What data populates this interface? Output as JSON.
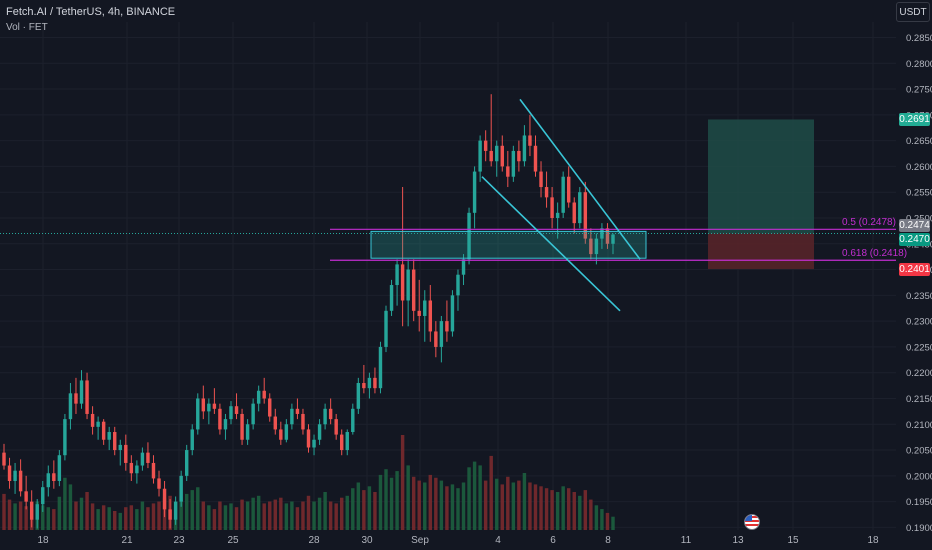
{
  "header": {
    "title": "Fetch.AI / TetherUS, 4h, BINANCE",
    "indicator": "Vol · FET",
    "currency": "USDT"
  },
  "colors": {
    "background": "#131722",
    "up": "#26a69a",
    "down": "#ef5350",
    "volume_up": "#1d5f3f",
    "volume_down": "#7a2a2e",
    "trendline": "#39c5d6",
    "fib": "#c22ed0",
    "zone": "#26a69a",
    "target_zone": "#1e4c46",
    "stop_zone": "#5a2429",
    "axis_text": "#b2b5be"
  },
  "fib_levels": [
    {
      "label": "0.5 (0.2478)",
      "value": 0.2478
    },
    {
      "label": "0.618 (0.2418)",
      "value": 0.2418
    }
  ],
  "price_tags": [
    {
      "label": "0.2691",
      "value": 0.2691,
      "color": "#22ab94"
    },
    {
      "label": "0.2474",
      "value": 0.2474,
      "color": "#787b86"
    },
    {
      "label": "0.2470",
      "value": 0.247,
      "color": "#089981"
    },
    {
      "label": "0.2401",
      "value": 0.2401,
      "color": "#f23645"
    }
  ],
  "chart_data": {
    "type": "candlestick",
    "y_ticks": [
      "0.2850",
      "0.2800",
      "0.2750",
      "0.2700",
      "0.2650",
      "0.2600",
      "0.2550",
      "0.2500",
      "0.2450",
      "0.2400",
      "0.2350",
      "0.2300",
      "0.2250",
      "0.2200",
      "0.2150",
      "0.2100",
      "0.2050",
      "0.2000",
      "0.1950",
      "0.1900"
    ],
    "y_range": [
      0.1895,
      0.288
    ],
    "x_ticks": [
      "18",
      "21",
      "23",
      "25",
      "28",
      "30",
      "Sep",
      "4",
      "6",
      "8",
      "11",
      "13",
      "15",
      "18"
    ],
    "candles": [
      [
        0.2045,
        0.2062,
        0.2012,
        0.202
      ],
      [
        0.202,
        0.2035,
        0.1975,
        0.199
      ],
      [
        0.199,
        0.2025,
        0.1965,
        0.201
      ],
      [
        0.201,
        0.2032,
        0.196,
        0.197
      ],
      [
        0.197,
        0.2,
        0.1935,
        0.195
      ],
      [
        0.195,
        0.1972,
        0.19,
        0.1915
      ],
      [
        0.1915,
        0.1955,
        0.1898,
        0.1945
      ],
      [
        0.1945,
        0.199,
        0.193,
        0.1978
      ],
      [
        0.1978,
        0.202,
        0.196,
        0.2005
      ],
      [
        0.2005,
        0.203,
        0.1975,
        0.199
      ],
      [
        0.199,
        0.205,
        0.198,
        0.204
      ],
      [
        0.204,
        0.212,
        0.203,
        0.211
      ],
      [
        0.211,
        0.218,
        0.209,
        0.216
      ],
      [
        0.216,
        0.219,
        0.212,
        0.214
      ],
      [
        0.214,
        0.2205,
        0.213,
        0.2185
      ],
      [
        0.2185,
        0.22,
        0.211,
        0.212
      ],
      [
        0.212,
        0.2135,
        0.208,
        0.2095
      ],
      [
        0.2095,
        0.2115,
        0.207,
        0.2105
      ],
      [
        0.2105,
        0.211,
        0.206,
        0.207
      ],
      [
        0.207,
        0.2095,
        0.205,
        0.2085
      ],
      [
        0.2085,
        0.2095,
        0.204,
        0.205
      ],
      [
        0.205,
        0.207,
        0.202,
        0.206
      ],
      [
        0.206,
        0.208,
        0.201,
        0.2025
      ],
      [
        0.2025,
        0.204,
        0.199,
        0.2005
      ],
      [
        0.2005,
        0.203,
        0.1985,
        0.202
      ],
      [
        0.202,
        0.2055,
        0.201,
        0.2045
      ],
      [
        0.2045,
        0.2065,
        0.2015,
        0.2025
      ],
      [
        0.2025,
        0.204,
        0.1985,
        0.1995
      ],
      [
        0.1995,
        0.201,
        0.196,
        0.1975
      ],
      [
        0.1975,
        0.199,
        0.192,
        0.1935
      ],
      [
        0.1935,
        0.1955,
        0.1898,
        0.1915
      ],
      [
        0.1915,
        0.196,
        0.1905,
        0.195
      ],
      [
        0.195,
        0.201,
        0.194,
        0.2
      ],
      [
        0.2,
        0.206,
        0.199,
        0.205
      ],
      [
        0.205,
        0.21,
        0.204,
        0.209
      ],
      [
        0.209,
        0.216,
        0.208,
        0.215
      ],
      [
        0.215,
        0.2175,
        0.211,
        0.2125
      ],
      [
        0.2125,
        0.215,
        0.21,
        0.214
      ],
      [
        0.214,
        0.217,
        0.212,
        0.213
      ],
      [
        0.213,
        0.214,
        0.208,
        0.209
      ],
      [
        0.209,
        0.212,
        0.207,
        0.211
      ],
      [
        0.211,
        0.2145,
        0.21,
        0.2135
      ],
      [
        0.2135,
        0.216,
        0.211,
        0.212
      ],
      [
        0.212,
        0.213,
        0.206,
        0.207
      ],
      [
        0.207,
        0.211,
        0.206,
        0.21
      ],
      [
        0.21,
        0.215,
        0.209,
        0.214
      ],
      [
        0.214,
        0.2175,
        0.2125,
        0.2165
      ],
      [
        0.2165,
        0.219,
        0.214,
        0.215
      ],
      [
        0.215,
        0.216,
        0.2105,
        0.2115
      ],
      [
        0.2115,
        0.213,
        0.208,
        0.209
      ],
      [
        0.209,
        0.2105,
        0.206,
        0.207
      ],
      [
        0.207,
        0.211,
        0.2065,
        0.21
      ],
      [
        0.21,
        0.214,
        0.209,
        0.213
      ],
      [
        0.213,
        0.215,
        0.211,
        0.212
      ],
      [
        0.212,
        0.213,
        0.208,
        0.209
      ],
      [
        0.209,
        0.21,
        0.2045,
        0.2055
      ],
      [
        0.2055,
        0.208,
        0.204,
        0.207
      ],
      [
        0.207,
        0.211,
        0.206,
        0.21
      ],
      [
        0.21,
        0.214,
        0.209,
        0.213
      ],
      [
        0.213,
        0.215,
        0.21,
        0.211
      ],
      [
        0.211,
        0.212,
        0.207,
        0.208
      ],
      [
        0.208,
        0.209,
        0.204,
        0.205
      ],
      [
        0.205,
        0.209,
        0.204,
        0.2085
      ],
      [
        0.2085,
        0.214,
        0.208,
        0.213
      ],
      [
        0.213,
        0.219,
        0.212,
        0.218
      ],
      [
        0.218,
        0.2215,
        0.216,
        0.217
      ],
      [
        0.217,
        0.22,
        0.215,
        0.219
      ],
      [
        0.219,
        0.221,
        0.216,
        0.217
      ],
      [
        0.217,
        0.226,
        0.216,
        0.225
      ],
      [
        0.225,
        0.233,
        0.224,
        0.232
      ],
      [
        0.232,
        0.238,
        0.231,
        0.237
      ],
      [
        0.237,
        0.242,
        0.233,
        0.241
      ],
      [
        0.241,
        0.256,
        0.229,
        0.234
      ],
      [
        0.234,
        0.242,
        0.229,
        0.24
      ],
      [
        0.24,
        0.242,
        0.23,
        0.232
      ],
      [
        0.232,
        0.238,
        0.228,
        0.231
      ],
      [
        0.231,
        0.236,
        0.226,
        0.234
      ],
      [
        0.234,
        0.237,
        0.226,
        0.228
      ],
      [
        0.228,
        0.23,
        0.223,
        0.225
      ],
      [
        0.225,
        0.231,
        0.222,
        0.23
      ],
      [
        0.23,
        0.234,
        0.226,
        0.228
      ],
      [
        0.228,
        0.236,
        0.227,
        0.235
      ],
      [
        0.235,
        0.24,
        0.232,
        0.239
      ],
      [
        0.239,
        0.243,
        0.237,
        0.242
      ],
      [
        0.242,
        0.252,
        0.241,
        0.251
      ],
      [
        0.251,
        0.26,
        0.248,
        0.259
      ],
      [
        0.259,
        0.266,
        0.257,
        0.265
      ],
      [
        0.265,
        0.267,
        0.261,
        0.263
      ],
      [
        0.263,
        0.274,
        0.26,
        0.261
      ],
      [
        0.261,
        0.265,
        0.258,
        0.264
      ],
      [
        0.264,
        0.266,
        0.259,
        0.26
      ],
      [
        0.26,
        0.263,
        0.256,
        0.258
      ],
      [
        0.258,
        0.264,
        0.257,
        0.263
      ],
      [
        0.263,
        0.265,
        0.259,
        0.261
      ],
      [
        0.261,
        0.268,
        0.26,
        0.266
      ],
      [
        0.266,
        0.27,
        0.262,
        0.264
      ],
      [
        0.264,
        0.266,
        0.258,
        0.259
      ],
      [
        0.259,
        0.261,
        0.254,
        0.256
      ],
      [
        0.256,
        0.259,
        0.252,
        0.254
      ],
      [
        0.254,
        0.256,
        0.248,
        0.25
      ],
      [
        0.25,
        0.253,
        0.246,
        0.251
      ],
      [
        0.251,
        0.259,
        0.25,
        0.258
      ],
      [
        0.258,
        0.26,
        0.252,
        0.253
      ],
      [
        0.253,
        0.254,
        0.247,
        0.249
      ],
      [
        0.249,
        0.256,
        0.248,
        0.255
      ],
      [
        0.255,
        0.257,
        0.245,
        0.246
      ],
      [
        0.246,
        0.248,
        0.242,
        0.243
      ],
      [
        0.243,
        0.247,
        0.241,
        0.246
      ],
      [
        0.246,
        0.249,
        0.244,
        0.248
      ],
      [
        0.248,
        0.249,
        0.244,
        0.245
      ],
      [
        0.245,
        0.247,
        0.243,
        0.2468
      ]
    ],
    "volumes": [
      0.38,
      0.32,
      0.28,
      0.3,
      0.25,
      0.22,
      0.3,
      0.26,
      0.24,
      0.22,
      0.35,
      0.55,
      0.48,
      0.3,
      0.34,
      0.4,
      0.28,
      0.22,
      0.26,
      0.24,
      0.2,
      0.18,
      0.24,
      0.26,
      0.22,
      0.3,
      0.24,
      0.28,
      0.3,
      0.34,
      0.36,
      0.3,
      0.32,
      0.38,
      0.42,
      0.45,
      0.3,
      0.26,
      0.22,
      0.3,
      0.26,
      0.28,
      0.24,
      0.32,
      0.3,
      0.34,
      0.36,
      0.28,
      0.3,
      0.32,
      0.34,
      0.28,
      0.3,
      0.24,
      0.3,
      0.36,
      0.3,
      0.34,
      0.4,
      0.3,
      0.28,
      0.34,
      0.36,
      0.44,
      0.5,
      0.42,
      0.46,
      0.4,
      0.58,
      0.64,
      0.55,
      0.62,
      1.0,
      0.68,
      0.56,
      0.52,
      0.5,
      0.58,
      0.55,
      0.52,
      0.46,
      0.48,
      0.44,
      0.5,
      0.66,
      0.72,
      0.68,
      0.52,
      0.78,
      0.54,
      0.48,
      0.56,
      0.5,
      0.52,
      0.6,
      0.5,
      0.48,
      0.46,
      0.44,
      0.42,
      0.4,
      0.46,
      0.44,
      0.4,
      0.36,
      0.42,
      0.32,
      0.26,
      0.22,
      0.18,
      0.14
    ],
    "resistance_line": [
      [
        0.273,
        520
      ],
      [
        0.242,
        640
      ]
    ],
    "support_line": [
      [
        0.258,
        482
      ],
      [
        0.232,
        620
      ]
    ],
    "zone": {
      "top": 0.2474,
      "bottom": 0.2422
    },
    "position": {
      "entry": 0.247,
      "target": 0.2691,
      "stop": 0.2401
    }
  }
}
